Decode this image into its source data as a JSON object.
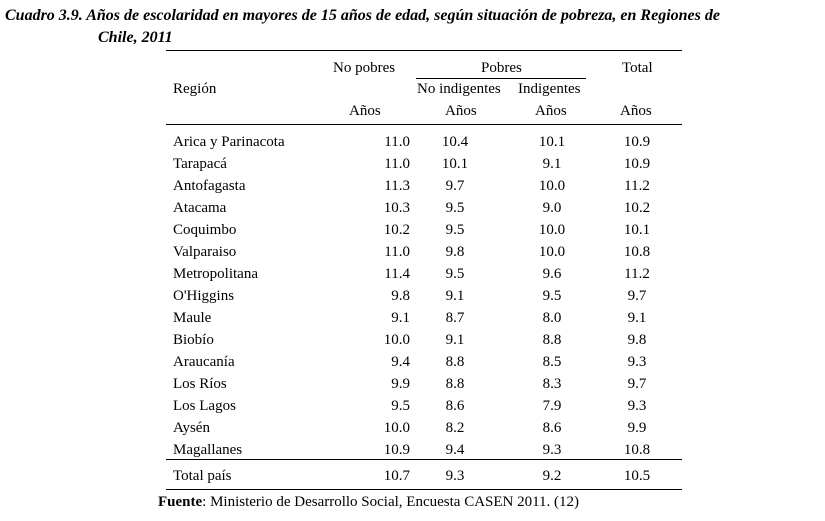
{
  "title": {
    "line1": "Cuadro 3.9. Años de escolaridad en mayores de 15 años de edad, según situación de pobreza, en Regiones de",
    "line2": "Chile, 2011"
  },
  "headers": {
    "region": "Región",
    "no_pobres": "No pobres",
    "pobres": "Pobres",
    "total": "Total",
    "no_indigentes": "No indigentes",
    "indigentes": "Indigentes",
    "anos": "Años"
  },
  "rows": [
    {
      "region": "Arica y Parinacota",
      "no_pobres": "11.0",
      "no_indigentes": "10.4",
      "indigentes": "10.1",
      "total": "10.9"
    },
    {
      "region": "Tarapacá",
      "no_pobres": "11.0",
      "no_indigentes": "10.1",
      "indigentes": "9.1",
      "total": "10.9"
    },
    {
      "region": "Antofagasta",
      "no_pobres": "11.3",
      "no_indigentes": "9.7",
      "indigentes": "10.0",
      "total": "11.2"
    },
    {
      "region": "Atacama",
      "no_pobres": "10.3",
      "no_indigentes": "9.5",
      "indigentes": "9.0",
      "total": "10.2"
    },
    {
      "region": "Coquimbo",
      "no_pobres": "10.2",
      "no_indigentes": "9.5",
      "indigentes": "10.0",
      "total": "10.1"
    },
    {
      "region": "Valparaiso",
      "no_pobres": "11.0",
      "no_indigentes": "9.8",
      "indigentes": "10.0",
      "total": "10.8"
    },
    {
      "region": "Metropolitana",
      "no_pobres": "11.4",
      "no_indigentes": "9.5",
      "indigentes": "9.6",
      "total": "11.2"
    },
    {
      "region": "O'Higgins",
      "no_pobres": "9.8",
      "no_indigentes": "9.1",
      "indigentes": "9.5",
      "total": "9.7"
    },
    {
      "region": "Maule",
      "no_pobres": "9.1",
      "no_indigentes": "8.7",
      "indigentes": "8.0",
      "total": "9.1"
    },
    {
      "region": "Biobío",
      "no_pobres": "10.0",
      "no_indigentes": "9.1",
      "indigentes": "8.8",
      "total": "9.8"
    },
    {
      "region": "Araucanía",
      "no_pobres": "9.4",
      "no_indigentes": "8.8",
      "indigentes": "8.5",
      "total": "9.3"
    },
    {
      "region": "Los Ríos",
      "no_pobres": "9.9",
      "no_indigentes": "8.8",
      "indigentes": "8.3",
      "total": "9.7"
    },
    {
      "region": "Los Lagos",
      "no_pobres": "9.5",
      "no_indigentes": "8.6",
      "indigentes": "7.9",
      "total": "9.3"
    },
    {
      "region": "Aysén",
      "no_pobres": "10.0",
      "no_indigentes": "8.2",
      "indigentes": "8.6",
      "total": "9.9"
    },
    {
      "region": "Magallanes",
      "no_pobres": "10.9",
      "no_indigentes": "9.4",
      "indigentes": "9.3",
      "total": "10.8"
    }
  ],
  "total_row": {
    "region": "Total país",
    "no_pobres": "10.7",
    "no_indigentes": "9.3",
    "indigentes": "9.2",
    "total": "10.5"
  },
  "source": {
    "label": "Fuente",
    "text": ": Ministerio de Desarrollo Social, Encuesta CASEN 2011. (12)"
  }
}
